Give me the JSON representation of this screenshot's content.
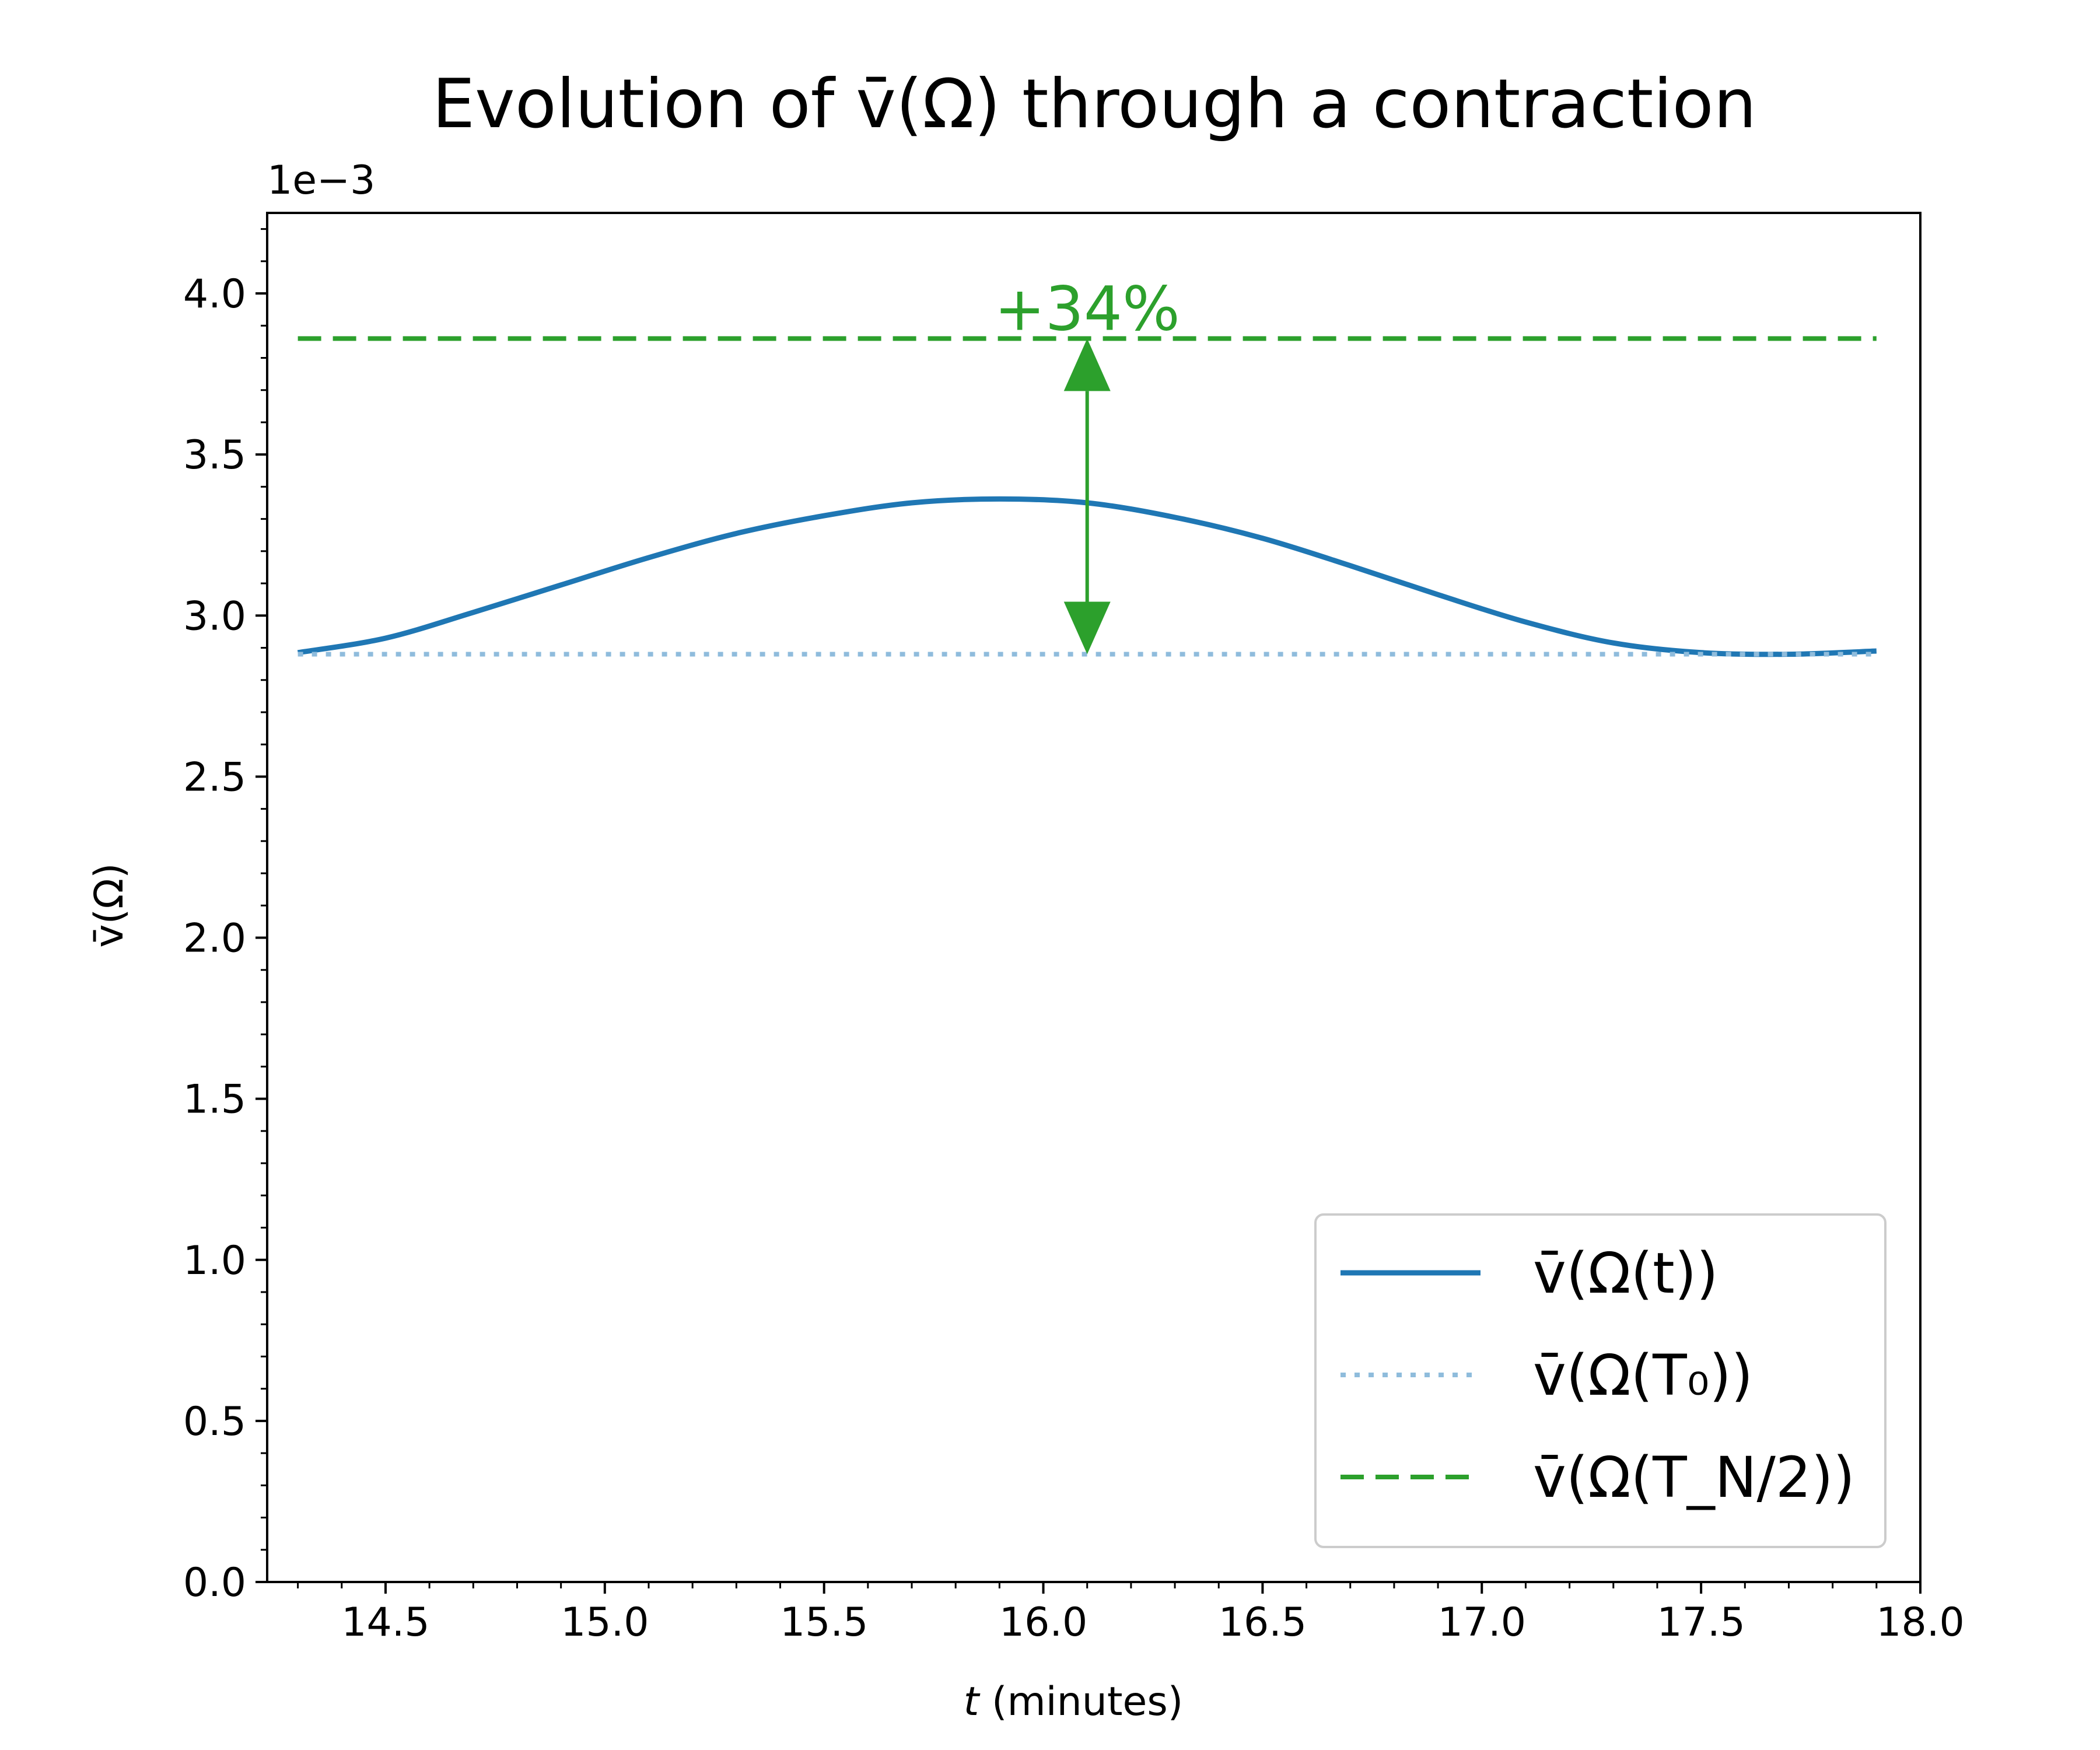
{
  "chart_data": {
    "type": "line",
    "title": "Evolution of v̄(Ω) through a contraction",
    "xlabel": {
      "var": "t",
      "rest": " (minutes)"
    },
    "ylabel": "v̄(Ω)",
    "y_offset_label": "1e−3",
    "xlim": [
      14.23,
      18.0
    ],
    "ylim": [
      0.0,
      0.00425
    ],
    "x_ticks": [
      14.5,
      15.0,
      15.5,
      16.0,
      16.5,
      17.0,
      17.5,
      18.0
    ],
    "x_tick_labels": [
      "14.5",
      "15.0",
      "15.5",
      "16.0",
      "16.5",
      "17.0",
      "17.5",
      "18.0"
    ],
    "y_ticks": [
      0.0,
      0.0005,
      0.001,
      0.0015,
      0.002,
      0.0025,
      0.003,
      0.0035,
      0.004
    ],
    "y_tick_labels": [
      "0.0",
      "0.5",
      "1.0",
      "1.5",
      "2.0",
      "2.5",
      "3.0",
      "3.5",
      "4.0"
    ],
    "grid": false,
    "legend_position": "lower-right",
    "series": [
      {
        "name": "v̄(Ω(t))",
        "style": "solid",
        "color": "#1f77b4",
        "x": [
          14.3,
          14.5,
          14.7,
          14.9,
          15.1,
          15.3,
          15.5,
          15.7,
          15.9,
          16.1,
          16.3,
          16.5,
          16.7,
          16.9,
          17.1,
          17.3,
          17.5,
          17.7,
          17.9
        ],
        "y": [
          0.002885,
          0.00293,
          0.00301,
          0.003095,
          0.00318,
          0.003255,
          0.00331,
          0.00335,
          0.003362,
          0.00335,
          0.003305,
          0.00324,
          0.003155,
          0.003065,
          0.00298,
          0.002915,
          0.002885,
          0.00288,
          0.00289
        ]
      },
      {
        "name": "v̄(Ω(T₀))",
        "style": "dotted",
        "color": "#8fbcdc",
        "x": [
          14.3,
          17.9
        ],
        "y": [
          0.00288,
          0.00288
        ]
      },
      {
        "name": "v̄(Ω(T_N/2))",
        "style": "dashed",
        "color": "#2ca02c",
        "x": [
          14.3,
          17.9
        ],
        "y": [
          0.00386,
          0.00386
        ]
      }
    ],
    "annotation": {
      "text": "+34%",
      "color": "#2ca02c",
      "x": 16.1,
      "y_from": 0.00288,
      "y_to": 0.00386
    }
  }
}
